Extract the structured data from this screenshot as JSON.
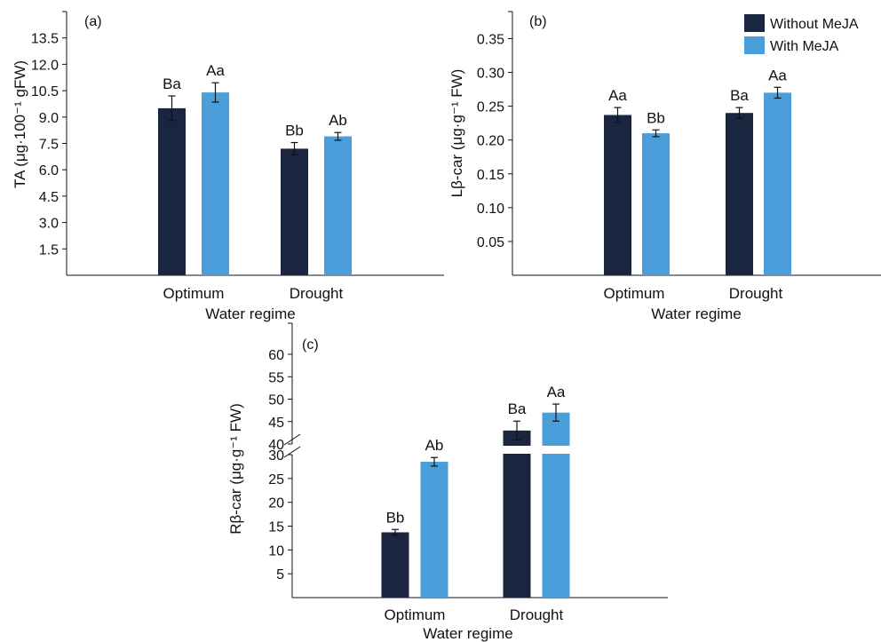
{
  "colors": {
    "without_meja": "#1a2540",
    "with_meja": "#4a9fda",
    "axis": "#111111"
  },
  "legend": {
    "items": [
      {
        "label": "Without MeJA",
        "color": "#1a2540"
      },
      {
        "label": "With MeJA",
        "color": "#4a9fda"
      }
    ]
  },
  "chart_data": [
    {
      "panel": "(a)",
      "type": "bar",
      "categories": [
        "Optimum",
        "Drought"
      ],
      "xlabel": "Water regime",
      "ylabel": "TA (μg·100⁻¹ gFW)",
      "ylim": [
        0,
        15
      ],
      "yticks": [
        1.5,
        3.0,
        4.5,
        6.0,
        7.5,
        9.0,
        10.5,
        12.0,
        13.5
      ],
      "ytick_labels": [
        "1.5",
        "3.0",
        "4.5",
        "6.0",
        "7.5",
        "9.0",
        "10.5",
        "12.0",
        "13.5"
      ],
      "series": [
        {
          "name": "Without MeJA",
          "values": [
            9.5,
            7.2
          ],
          "errors": [
            0.7,
            0.35
          ],
          "labels": [
            "Ba",
            "Bb"
          ]
        },
        {
          "name": "With MeJA",
          "values": [
            10.4,
            7.9
          ],
          "errors": [
            0.55,
            0.22
          ],
          "labels": [
            "Aa",
            "Ab"
          ]
        }
      ]
    },
    {
      "panel": "(b)",
      "type": "bar",
      "categories": [
        "Optimum",
        "Drought"
      ],
      "xlabel": "Water regime",
      "ylabel": "Lβ-car (μg·g⁻¹ FW)",
      "ylim": [
        0,
        0.39
      ],
      "yticks": [
        0.05,
        0.1,
        0.15,
        0.2,
        0.25,
        0.3,
        0.35
      ],
      "ytick_labels": [
        "0.05",
        "0.10",
        "0.15",
        "0.20",
        "0.25",
        "0.30",
        "0.35"
      ],
      "series": [
        {
          "name": "Without MeJA",
          "values": [
            0.237,
            0.24
          ],
          "errors": [
            0.011,
            0.008
          ],
          "labels": [
            "Aa",
            "Ba"
          ]
        },
        {
          "name": "With MeJA",
          "values": [
            0.21,
            0.27
          ],
          "errors": [
            0.005,
            0.008
          ],
          "labels": [
            "Bb",
            "Aa"
          ]
        }
      ]
    },
    {
      "panel": "(c)",
      "type": "bar",
      "categories": [
        "Optimum",
        "Drought"
      ],
      "xlabel": "Water regime",
      "ylabel": "Rβ-car (μg·g⁻¹ FW)",
      "axis_break": [
        30,
        40
      ],
      "ylim": [
        0,
        63
      ],
      "yticks": [
        5,
        10,
        15,
        20,
        25,
        30,
        40,
        45,
        50,
        55,
        60
      ],
      "ytick_labels": [
        "5",
        "10",
        "15",
        "20",
        "25",
        "30",
        "40",
        "45",
        "50",
        "55",
        "60"
      ],
      "series": [
        {
          "name": "Without MeJA",
          "values": [
            13.7,
            43
          ],
          "errors": [
            0.6,
            2.1
          ],
          "labels": [
            "Bb",
            "Ba"
          ]
        },
        {
          "name": "With MeJA",
          "values": [
            28.5,
            47
          ],
          "errors": [
            0.9,
            1.9
          ],
          "labels": [
            "Ab",
            "Aa"
          ]
        }
      ]
    }
  ]
}
